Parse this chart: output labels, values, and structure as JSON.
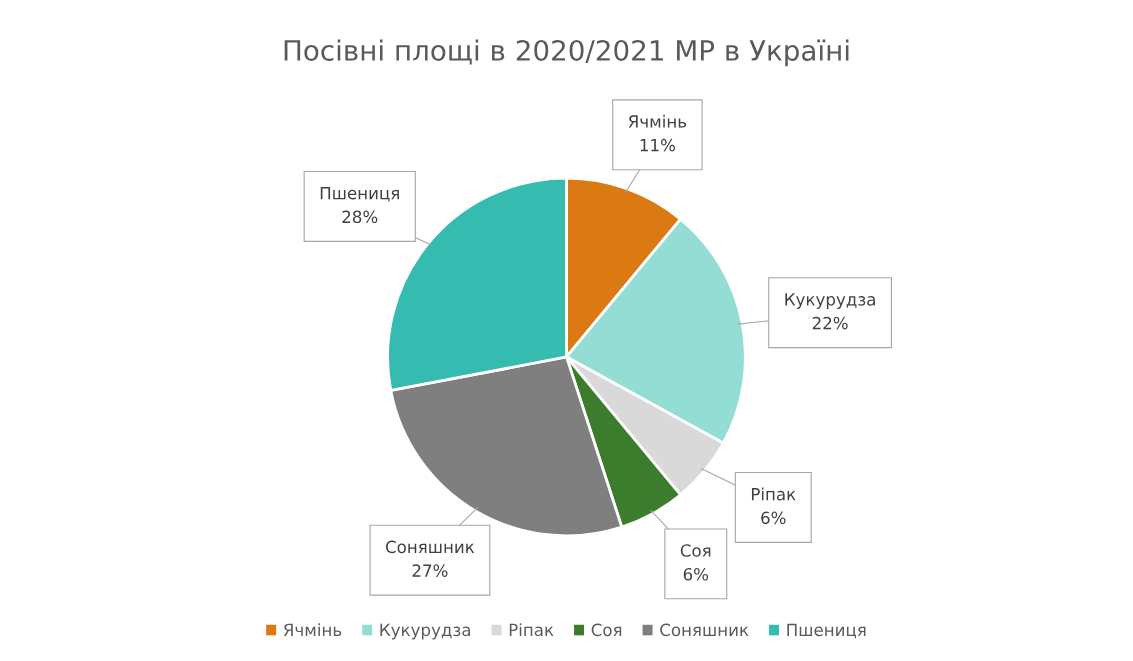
{
  "chart_data": {
    "type": "pie",
    "title": "Посівні площі в 2020/2021 МР в Україні",
    "categories": [
      "Ячмінь",
      "Кукурудза",
      "Ріпак",
      "Соя",
      "Соняшник",
      "Пшениця"
    ],
    "values": [
      11,
      22,
      6,
      6,
      27,
      28
    ],
    "value_labels": [
      "11%",
      "22%",
      "6%",
      "6%",
      "27%",
      "28%"
    ],
    "colors": [
      "#db7a12",
      "#93ddd5",
      "#d9d9d9",
      "#3b7d2c",
      "#7f7f7f",
      "#36bbb0"
    ],
    "legend": "bottom"
  }
}
